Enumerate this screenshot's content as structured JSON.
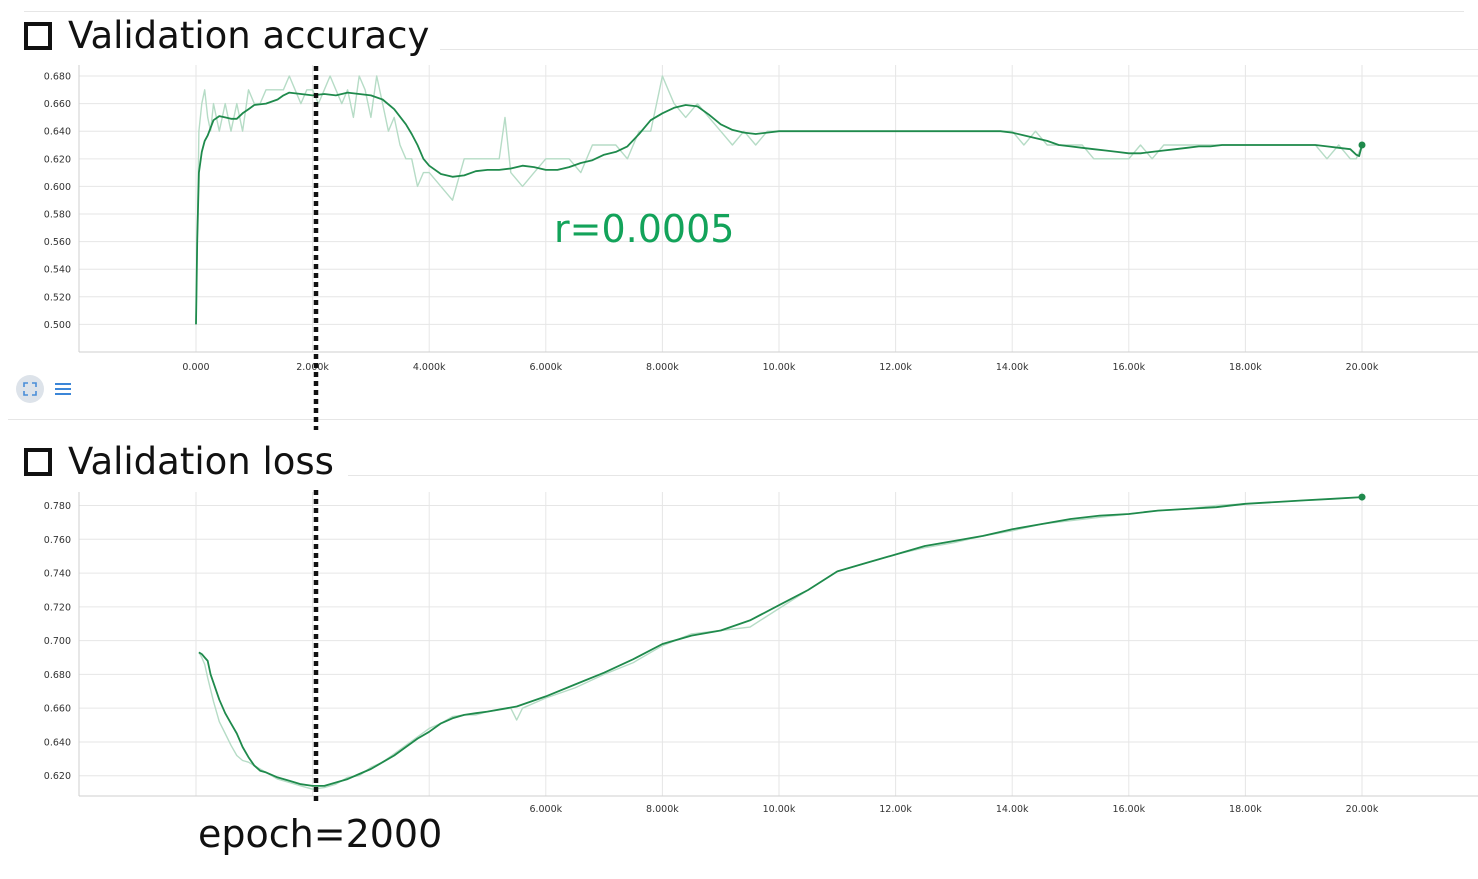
{
  "colors": {
    "line": "#1f8a4c",
    "raw": "#b6dcc6",
    "annotation": "#13a35a",
    "grid": "#e6e6e6",
    "marker": "#111111"
  },
  "icons": {
    "panel_toggle": "checkbox-square-icon",
    "fit": "fit-to-domain-icon",
    "data_toggle": "list-lines-icon"
  },
  "annotations": {
    "learning_rate": "r=0.0005",
    "epoch": "epoch=2000"
  },
  "chart_data": [
    {
      "type": "line",
      "title": "Validation accuracy",
      "xlabel": "",
      "ylabel": "",
      "xlim": [
        -2000,
        20000
      ],
      "ylim": [
        0.48,
        0.688
      ],
      "y_ticks": [
        0.5,
        0.52,
        0.54,
        0.56,
        0.58,
        0.6,
        0.62,
        0.64,
        0.66,
        0.68
      ],
      "y_tick_labels": [
        "0.500",
        "0.520",
        "0.540",
        "0.560",
        "0.580",
        "0.600",
        "0.620",
        "0.640",
        "0.660",
        "0.680"
      ],
      "x_ticks": [
        0,
        2000,
        4000,
        6000,
        8000,
        10000,
        12000,
        14000,
        16000,
        18000,
        20000
      ],
      "x_tick_labels": [
        "0.000",
        "2.000k",
        "4.000k",
        "6.000k",
        "8.000k",
        "10.00k",
        "12.00k",
        "14.00k",
        "16.00k",
        "18.00k",
        "20.00k"
      ],
      "grid": true,
      "series": [
        {
          "name": "",
          "role": "smoothed",
          "x": [
            0,
            20,
            50,
            100,
            150,
            200,
            300,
            400,
            500,
            600,
            700,
            800,
            900,
            1000,
            1200,
            1400,
            1500,
            1600,
            1800,
            2000,
            2200,
            2400,
            2600,
            2800,
            3000,
            3200,
            3400,
            3600,
            3700,
            3800,
            3900,
            4000,
            4200,
            4400,
            4600,
            4800,
            5000,
            5200,
            5400,
            5600,
            5800,
            6000,
            6200,
            6400,
            6600,
            6800,
            7000,
            7200,
            7400,
            7600,
            7800,
            8000,
            8200,
            8400,
            8600,
            8800,
            9000,
            9200,
            9400,
            9600,
            9800,
            10000,
            12000,
            13800,
            14000,
            14200,
            14400,
            14600,
            14800,
            15000,
            15200,
            15400,
            15600,
            15800,
            16000,
            16200,
            16400,
            16600,
            16800,
            17000,
            17200,
            17400,
            17600,
            17800,
            18000,
            18200,
            18400,
            18600,
            18800,
            19000,
            19200,
            19400,
            19600,
            19800,
            19900,
            19950,
            20000
          ],
          "y": [
            0.5,
            0.56,
            0.61,
            0.625,
            0.633,
            0.637,
            0.648,
            0.651,
            0.65,
            0.649,
            0.649,
            0.653,
            0.656,
            0.659,
            0.66,
            0.663,
            0.666,
            0.668,
            0.667,
            0.666,
            0.667,
            0.666,
            0.668,
            0.667,
            0.666,
            0.663,
            0.656,
            0.645,
            0.638,
            0.63,
            0.62,
            0.615,
            0.609,
            0.607,
            0.608,
            0.611,
            0.612,
            0.612,
            0.613,
            0.615,
            0.614,
            0.612,
            0.612,
            0.614,
            0.617,
            0.619,
            0.623,
            0.625,
            0.629,
            0.638,
            0.648,
            0.653,
            0.657,
            0.659,
            0.658,
            0.652,
            0.645,
            0.641,
            0.639,
            0.638,
            0.639,
            0.64,
            0.64,
            0.64,
            0.639,
            0.637,
            0.635,
            0.633,
            0.63,
            0.629,
            0.628,
            0.627,
            0.626,
            0.625,
            0.624,
            0.624,
            0.625,
            0.626,
            0.627,
            0.628,
            0.629,
            0.629,
            0.63,
            0.63,
            0.63,
            0.63,
            0.63,
            0.63,
            0.63,
            0.63,
            0.63,
            0.629,
            0.628,
            0.627,
            0.623,
            0.622,
            0.63
          ]
        },
        {
          "name": "",
          "role": "raw",
          "x": [
            0,
            50,
            100,
            150,
            200,
            250,
            300,
            400,
            500,
            600,
            700,
            800,
            900,
            1000,
            1100,
            1200,
            1300,
            1400,
            1500,
            1600,
            1700,
            1800,
            1900,
            2000,
            2100,
            2200,
            2300,
            2400,
            2500,
            2600,
            2700,
            2800,
            2900,
            3000,
            3100,
            3200,
            3300,
            3400,
            3500,
            3600,
            3700,
            3800,
            3900,
            4000,
            4200,
            4400,
            4600,
            4800,
            5000,
            5200,
            5300,
            5400,
            5600,
            5800,
            6000,
            6200,
            6400,
            6600,
            6800,
            7000,
            7200,
            7400,
            7600,
            7800,
            7900,
            8000,
            8100,
            8200,
            8400,
            8600,
            8800,
            9000,
            9200,
            9400,
            9600,
            9800,
            10000,
            12000,
            13800,
            14000,
            14200,
            14400,
            14600,
            14800,
            15000,
            15200,
            15400,
            15600,
            15800,
            16000,
            16200,
            16400,
            16600,
            16800,
            17000,
            17200,
            17400,
            17600,
            17800,
            18000,
            18200,
            18400,
            18600,
            18800,
            19000,
            19200,
            19400,
            19600,
            19800,
            19900,
            20000
          ],
          "y": [
            0.5,
            0.64,
            0.66,
            0.67,
            0.65,
            0.64,
            0.66,
            0.64,
            0.66,
            0.64,
            0.66,
            0.64,
            0.67,
            0.66,
            0.66,
            0.67,
            0.67,
            0.67,
            0.67,
            0.68,
            0.67,
            0.66,
            0.67,
            0.67,
            0.66,
            0.67,
            0.68,
            0.67,
            0.66,
            0.67,
            0.65,
            0.68,
            0.67,
            0.65,
            0.68,
            0.66,
            0.64,
            0.65,
            0.63,
            0.62,
            0.62,
            0.6,
            0.61,
            0.61,
            0.6,
            0.59,
            0.62,
            0.62,
            0.62,
            0.62,
            0.65,
            0.61,
            0.6,
            0.61,
            0.62,
            0.62,
            0.62,
            0.61,
            0.63,
            0.63,
            0.63,
            0.62,
            0.64,
            0.64,
            0.66,
            0.68,
            0.67,
            0.66,
            0.65,
            0.66,
            0.65,
            0.64,
            0.63,
            0.64,
            0.63,
            0.64,
            0.64,
            0.64,
            0.64,
            0.64,
            0.63,
            0.64,
            0.63,
            0.63,
            0.63,
            0.63,
            0.62,
            0.62,
            0.62,
            0.62,
            0.63,
            0.62,
            0.63,
            0.63,
            0.63,
            0.63,
            0.63,
            0.63,
            0.63,
            0.63,
            0.63,
            0.63,
            0.63,
            0.63,
            0.63,
            0.63,
            0.62,
            0.63,
            0.62,
            0.62,
            0.63
          ]
        }
      ]
    },
    {
      "type": "line",
      "title": "Validation loss",
      "xlabel": "",
      "ylabel": "",
      "xlim": [
        -2000,
        20000
      ],
      "ylim": [
        0.608,
        0.788
      ],
      "y_ticks": [
        0.62,
        0.64,
        0.66,
        0.68,
        0.7,
        0.72,
        0.74,
        0.76,
        0.78
      ],
      "y_tick_labels": [
        "0.620",
        "0.640",
        "0.660",
        "0.680",
        "0.700",
        "0.720",
        "0.740",
        "0.760",
        "0.780"
      ],
      "x_ticks": [
        0,
        2000,
        4000,
        6000,
        8000,
        10000,
        12000,
        14000,
        16000,
        18000,
        20000
      ],
      "x_tick_labels": [
        "",
        "",
        "",
        "6.000k",
        "8.000k",
        "10.00k",
        "12.00k",
        "14.00k",
        "16.00k",
        "18.00k",
        "20.00k"
      ],
      "grid": true,
      "series": [
        {
          "name": "",
          "role": "smoothed",
          "x": [
            50,
            100,
            150,
            200,
            250,
            300,
            400,
            500,
            600,
            700,
            800,
            900,
            1000,
            1100,
            1200,
            1400,
            1600,
            1800,
            2000,
            2200,
            2400,
            2600,
            2800,
            3000,
            3200,
            3400,
            3600,
            3800,
            4000,
            4200,
            4400,
            4600,
            4800,
            5000,
            5500,
            6000,
            6500,
            7000,
            7500,
            8000,
            8500,
            9000,
            9500,
            10000,
            10500,
            11000,
            11500,
            12000,
            12500,
            13000,
            13500,
            14000,
            14500,
            15000,
            15500,
            16000,
            16500,
            17000,
            17500,
            18000,
            18500,
            19000,
            19500,
            20000
          ],
          "y": [
            0.693,
            0.692,
            0.69,
            0.688,
            0.68,
            0.675,
            0.665,
            0.657,
            0.651,
            0.645,
            0.637,
            0.631,
            0.626,
            0.623,
            0.622,
            0.619,
            0.617,
            0.615,
            0.614,
            0.614,
            0.616,
            0.618,
            0.621,
            0.624,
            0.628,
            0.632,
            0.637,
            0.642,
            0.646,
            0.651,
            0.654,
            0.656,
            0.657,
            0.658,
            0.661,
            0.667,
            0.674,
            0.681,
            0.689,
            0.698,
            0.703,
            0.706,
            0.712,
            0.721,
            0.73,
            0.741,
            0.746,
            0.751,
            0.756,
            0.759,
            0.762,
            0.766,
            0.769,
            0.772,
            0.774,
            0.775,
            0.777,
            0.778,
            0.779,
            0.781,
            0.782,
            0.783,
            0.784,
            0.785
          ]
        },
        {
          "name": "",
          "role": "raw",
          "x": [
            50,
            100,
            150,
            200,
            300,
            400,
            500,
            600,
            700,
            800,
            900,
            1000,
            1200,
            1400,
            1600,
            1800,
            2000,
            2200,
            2400,
            2600,
            2800,
            3000,
            3200,
            3400,
            3600,
            3800,
            4000,
            4200,
            4400,
            4600,
            4800,
            5000,
            5200,
            5400,
            5500,
            5600,
            6000,
            6500,
            7000,
            7500,
            8000,
            8500,
            9000,
            9500,
            10000,
            10500,
            11000,
            11500,
            12000,
            12500,
            13000,
            13500,
            14000,
            14500,
            15000,
            15500,
            16000,
            16500,
            17000,
            17500,
            18000,
            18500,
            19000,
            19500,
            20000
          ],
          "y": [
            0.693,
            0.69,
            0.686,
            0.678,
            0.664,
            0.652,
            0.645,
            0.638,
            0.632,
            0.629,
            0.628,
            0.626,
            0.622,
            0.618,
            0.616,
            0.614,
            0.612,
            0.613,
            0.615,
            0.619,
            0.62,
            0.625,
            0.628,
            0.633,
            0.638,
            0.643,
            0.648,
            0.651,
            0.655,
            0.656,
            0.656,
            0.658,
            0.659,
            0.66,
            0.653,
            0.66,
            0.666,
            0.672,
            0.68,
            0.687,
            0.697,
            0.704,
            0.706,
            0.708,
            0.719,
            0.73,
            0.741,
            0.746,
            0.751,
            0.755,
            0.758,
            0.762,
            0.765,
            0.769,
            0.771,
            0.773,
            0.775,
            0.777,
            0.778,
            0.78,
            0.781,
            0.782,
            0.783,
            0.784,
            0.785
          ]
        }
      ]
    }
  ]
}
